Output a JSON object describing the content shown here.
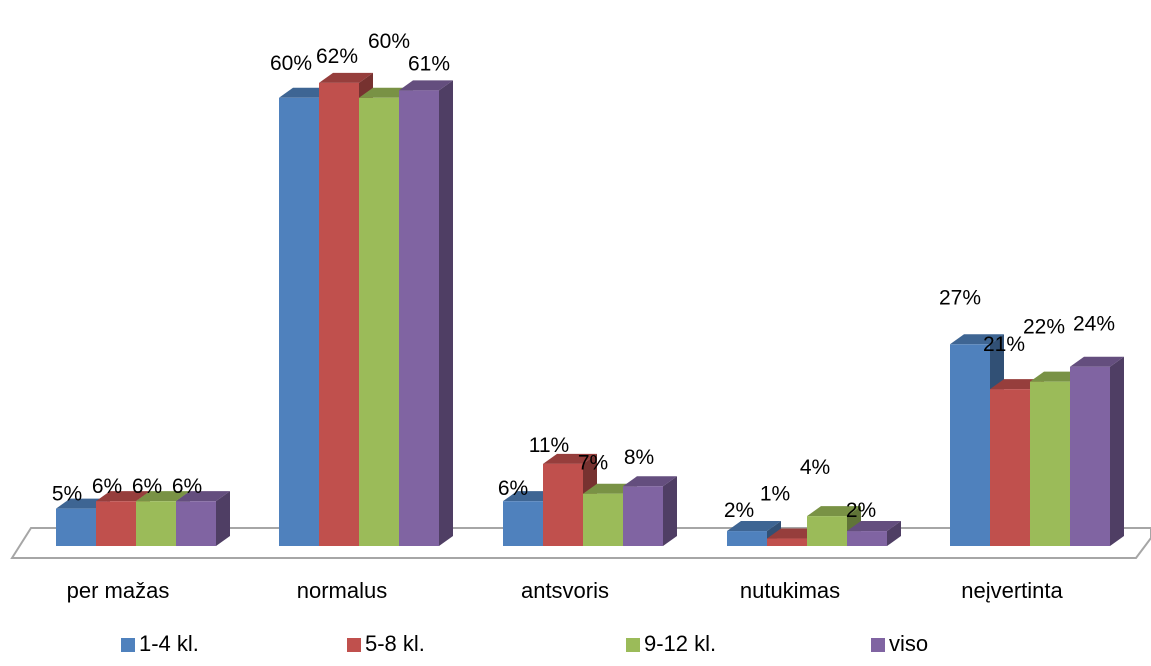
{
  "chart_data": {
    "type": "bar",
    "style": "3d-clustered",
    "categories": [
      "per mažas",
      "normalus",
      "antsvoris",
      "nutukimas",
      "neįvertinta"
    ],
    "series": [
      {
        "name": "1-4 kl.",
        "color": "#4F81BD",
        "values": [
          5,
          60,
          6,
          2,
          27
        ],
        "labels": [
          "5%",
          "60%",
          "6%",
          "2%",
          "27%"
        ]
      },
      {
        "name": "5-8 kl.",
        "color": "#C0504D",
        "values": [
          6,
          62,
          11,
          1,
          21
        ],
        "labels": [
          "6%",
          "62%",
          "11%",
          "1%",
          "21%"
        ]
      },
      {
        "name": "9-12 kl.",
        "color": "#9BBB59",
        "values": [
          6,
          60,
          7,
          4,
          22
        ],
        "labels": [
          "6%",
          "60%",
          "7%",
          "4%",
          "22%"
        ]
      },
      {
        "name": "viso",
        "color": "#8064A2",
        "values": [
          6,
          61,
          8,
          2,
          24
        ],
        "labels": [
          "6%",
          "61%",
          "8%",
          "2%",
          "24%"
        ]
      }
    ],
    "ylim": [
      0,
      62
    ],
    "grid": false,
    "legend_position": "bottom"
  }
}
